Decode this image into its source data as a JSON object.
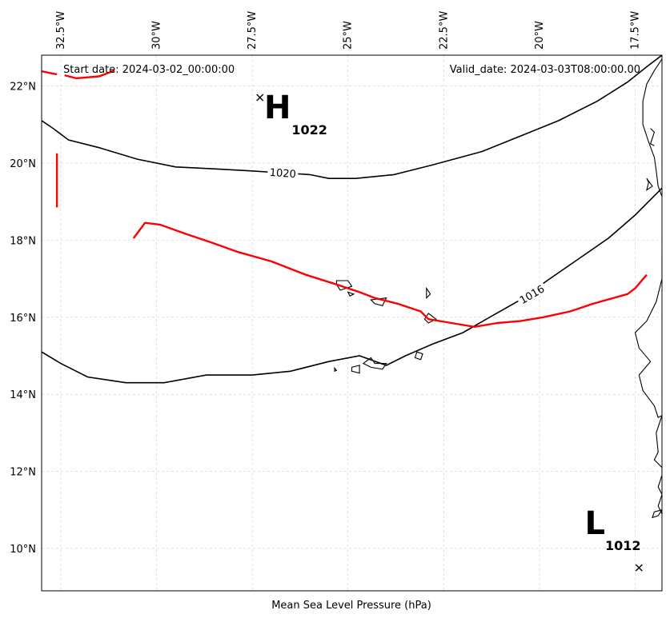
{
  "map": {
    "start_date_text": "Start date: 2024-03-02_00:00:00",
    "valid_date_text": "Valid_date: 2024-03-03T08:00:00.00",
    "xlabel": "Mean Sea Level Pressure (hPa)",
    "lon_ticks": [
      "32.5°W",
      "30°W",
      "27.5°W",
      "25°W",
      "22.5°W",
      "20°W",
      "17.5°W"
    ],
    "lat_ticks": [
      "22°N",
      "20°N",
      "18°N",
      "16°N",
      "14°N",
      "12°N",
      "10°N"
    ],
    "extent": {
      "lon_west": -33.0,
      "lon_east": -16.8,
      "lat_south": 8.9,
      "lat_north": 22.8
    },
    "gridlines": true,
    "colors": {
      "front": "#ff0000",
      "isobar": "#000000",
      "coast": "#000000",
      "grid": "#cccccc"
    },
    "pressure_centers": [
      {
        "type": "H",
        "label": "H",
        "value_text": "1022",
        "lon": -27.3,
        "lat": 21.7
      },
      {
        "type": "L",
        "label": "L",
        "value_text": "1012",
        "lon": -17.4,
        "lat": 9.5
      }
    ],
    "isobars": [
      {
        "value": 1020,
        "label": "1020",
        "label_lon": -26.7,
        "label_lat": 19.75,
        "points": [
          [
            -33.0,
            21.1
          ],
          [
            -32.7,
            20.9
          ],
          [
            -32.3,
            20.6
          ],
          [
            -31.5,
            20.4
          ],
          [
            -30.5,
            20.1
          ],
          [
            -29.5,
            19.9
          ],
          [
            -28.5,
            19.85
          ],
          [
            -27.6,
            19.8
          ],
          [
            -26.8,
            19.75
          ],
          [
            -26.0,
            19.7
          ],
          [
            -25.5,
            19.6
          ],
          [
            -24.8,
            19.6
          ],
          [
            -23.8,
            19.7
          ],
          [
            -22.8,
            19.95
          ],
          [
            -21.5,
            20.3
          ],
          [
            -20.5,
            20.7
          ],
          [
            -19.5,
            21.1
          ],
          [
            -18.5,
            21.6
          ],
          [
            -17.7,
            22.1
          ],
          [
            -17.2,
            22.5
          ],
          [
            -16.8,
            22.8
          ]
        ]
      },
      {
        "value": 1016,
        "label": "1016",
        "label_lon": -20.2,
        "label_lat": 16.6,
        "points": [
          [
            -33.0,
            15.1
          ],
          [
            -32.5,
            14.8
          ],
          [
            -31.8,
            14.45
          ],
          [
            -30.8,
            14.3
          ],
          [
            -29.8,
            14.3
          ],
          [
            -28.7,
            14.5
          ],
          [
            -27.5,
            14.5
          ],
          [
            -26.5,
            14.6
          ],
          [
            -25.5,
            14.85
          ],
          [
            -24.7,
            15.0
          ],
          [
            -24.0,
            14.75
          ],
          [
            -23.5,
            15.0
          ],
          [
            -22.8,
            15.3
          ],
          [
            -22.0,
            15.6
          ],
          [
            -21.3,
            16.0
          ],
          [
            -20.5,
            16.45
          ],
          [
            -19.8,
            16.95
          ],
          [
            -19.0,
            17.5
          ],
          [
            -18.2,
            18.05
          ],
          [
            -17.5,
            18.65
          ],
          [
            -17.0,
            19.15
          ],
          [
            -16.8,
            19.35
          ]
        ]
      }
    ],
    "fronts": [
      {
        "points": [
          [
            -33.0,
            22.38
          ],
          [
            -32.6,
            22.3
          ]
        ]
      },
      {
        "points": [
          [
            -32.4,
            22.28
          ],
          [
            -32.1,
            22.2
          ],
          [
            -31.5,
            22.25
          ],
          [
            -31.1,
            22.4
          ]
        ]
      },
      {
        "points": [
          [
            -32.6,
            20.25
          ],
          [
            -32.6,
            18.85
          ]
        ]
      },
      {
        "points": [
          [
            -30.6,
            18.05
          ],
          [
            -30.3,
            18.45
          ],
          [
            -29.9,
            18.4
          ],
          [
            -29.2,
            18.15
          ],
          [
            -28.6,
            17.95
          ],
          [
            -27.9,
            17.7
          ],
          [
            -27.0,
            17.45
          ],
          [
            -26.1,
            17.1
          ],
          [
            -25.3,
            16.85
          ],
          [
            -24.7,
            16.65
          ],
          [
            -24.3,
            16.5
          ],
          [
            -23.7,
            16.35
          ],
          [
            -23.1,
            16.15
          ],
          [
            -22.9,
            15.95
          ],
          [
            -22.3,
            15.85
          ],
          [
            -21.7,
            15.75
          ],
          [
            -21.1,
            15.85
          ],
          [
            -20.5,
            15.9
          ],
          [
            -19.9,
            16.0
          ],
          [
            -19.2,
            16.15
          ],
          [
            -18.6,
            16.35
          ],
          [
            -17.7,
            16.6
          ],
          [
            -17.5,
            16.75
          ],
          [
            -17.2,
            17.1
          ]
        ]
      }
    ],
    "coastline": [
      {
        "points": [
          [
            -16.8,
            22.7
          ],
          [
            -17.0,
            22.4
          ],
          [
            -17.2,
            22.05
          ],
          [
            -17.3,
            21.6
          ],
          [
            -17.3,
            21.0
          ],
          [
            -17.15,
            20.55
          ],
          [
            -17.0,
            20.15
          ],
          [
            -16.95,
            19.8
          ],
          [
            -16.9,
            19.4
          ],
          [
            -16.75,
            19.0
          ],
          [
            -16.75,
            18.4
          ],
          [
            -16.8,
            17.6
          ],
          [
            -16.8,
            17.0
          ],
          [
            -16.95,
            16.4
          ],
          [
            -17.2,
            15.9
          ],
          [
            -17.5,
            15.6
          ],
          [
            -17.4,
            15.2
          ],
          [
            -17.1,
            14.85
          ],
          [
            -17.4,
            14.5
          ],
          [
            -17.3,
            14.1
          ],
          [
            -17.0,
            13.7
          ],
          [
            -16.9,
            13.4
          ],
          [
            -16.8,
            13.45
          ],
          [
            -16.95,
            13.0
          ],
          [
            -16.9,
            12.5
          ],
          [
            -17.0,
            12.3
          ],
          [
            -16.8,
            12.1
          ],
          [
            -16.8,
            11.9
          ],
          [
            -16.9,
            11.6
          ],
          [
            -16.8,
            11.4
          ],
          [
            -16.9,
            11.1
          ],
          [
            -16.8,
            10.9
          ]
        ]
      },
      {
        "points": [
          [
            -17.1,
            20.9
          ],
          [
            -17.0,
            20.8
          ],
          [
            -17.1,
            20.5
          ],
          [
            -17.0,
            20.45
          ]
        ]
      },
      {
        "points": [
          [
            -17.2,
            19.6
          ],
          [
            -17.05,
            19.4
          ],
          [
            -17.2,
            19.3
          ],
          [
            -17.15,
            19.5
          ],
          [
            -17.2,
            19.6
          ]
        ]
      }
    ],
    "islands": [
      {
        "points": [
          [
            -25.3,
            16.95
          ],
          [
            -25.0,
            16.95
          ],
          [
            -24.9,
            16.8
          ],
          [
            -25.2,
            16.7
          ],
          [
            -25.3,
            16.85
          ],
          [
            -25.3,
            16.95
          ]
        ]
      },
      {
        "points": [
          [
            -25.0,
            16.65
          ],
          [
            -24.85,
            16.6
          ],
          [
            -24.95,
            16.55
          ],
          [
            -25.0,
            16.65
          ]
        ]
      },
      {
        "points": [
          [
            -24.4,
            16.45
          ],
          [
            -24.0,
            16.5
          ],
          [
            -24.1,
            16.3
          ],
          [
            -24.3,
            16.35
          ],
          [
            -24.4,
            16.45
          ]
        ]
      },
      {
        "points": [
          [
            -22.95,
            16.75
          ],
          [
            -22.85,
            16.6
          ],
          [
            -22.95,
            16.5
          ],
          [
            -22.95,
            16.75
          ]
        ]
      },
      {
        "points": [
          [
            -22.9,
            16.1
          ],
          [
            -22.7,
            15.95
          ],
          [
            -22.9,
            15.85
          ],
          [
            -23.0,
            15.95
          ],
          [
            -22.9,
            16.1
          ]
        ]
      },
      {
        "points": [
          [
            -24.6,
            14.8
          ],
          [
            -24.4,
            14.95
          ],
          [
            -24.3,
            14.8
          ],
          [
            -24.0,
            14.8
          ],
          [
            -24.1,
            14.65
          ],
          [
            -24.4,
            14.7
          ],
          [
            -24.6,
            14.8
          ]
        ]
      },
      {
        "points": [
          [
            -23.2,
            15.1
          ],
          [
            -23.05,
            15.05
          ],
          [
            -23.1,
            14.9
          ],
          [
            -23.25,
            14.95
          ],
          [
            -23.2,
            15.1
          ]
        ]
      },
      {
        "points": [
          [
            -24.9,
            14.7
          ],
          [
            -24.7,
            14.75
          ],
          [
            -24.7,
            14.55
          ],
          [
            -24.9,
            14.6
          ],
          [
            -24.9,
            14.7
          ]
        ]
      },
      {
        "points": [
          [
            -25.35,
            14.68
          ],
          [
            -25.3,
            14.62
          ],
          [
            -25.35,
            14.6
          ],
          [
            -25.35,
            14.68
          ]
        ]
      },
      {
        "points": [
          [
            -16.8,
            11.0
          ],
          [
            -17.0,
            10.95
          ],
          [
            -17.05,
            10.8
          ],
          [
            -16.9,
            10.85
          ],
          [
            -16.8,
            11.0
          ]
        ]
      }
    ]
  }
}
